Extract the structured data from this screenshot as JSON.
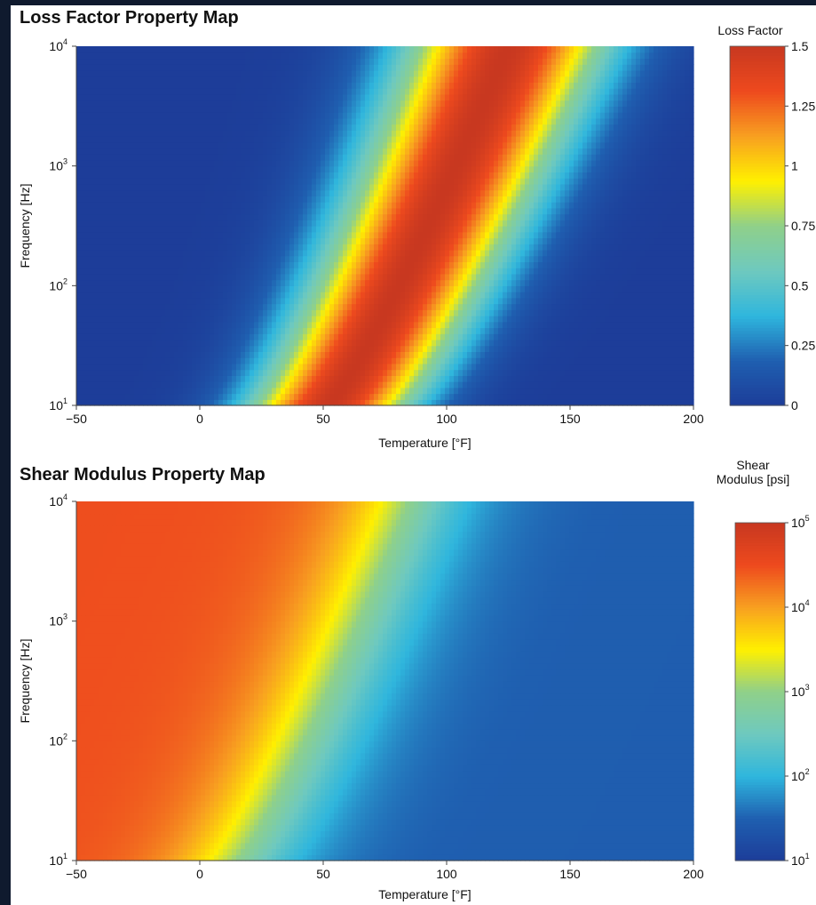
{
  "colors": {
    "page_background": "#0f1a2e",
    "colormap": [
      "#1d3d99",
      "#1f5fb0",
      "#2fb6dd",
      "#6ec9bf",
      "#8fd08a",
      "#fff000",
      "#f8a020",
      "#ee4a1e",
      "#c83820"
    ]
  },
  "chart_data": [
    {
      "type": "heatmap",
      "title": "Loss Factor Property Map",
      "xlabel": "Temperature [°F]",
      "ylabel": "Frequency [Hz]",
      "x_ticks": [
        "−50",
        "0",
        "50",
        "100",
        "150",
        "200"
      ],
      "xlim": [
        -50,
        200
      ],
      "y_scale": "log",
      "y_ticks": [
        {
          "base": "10",
          "exp": "1"
        },
        {
          "base": "10",
          "exp": "2"
        },
        {
          "base": "10",
          "exp": "3"
        },
        {
          "base": "10",
          "exp": "4"
        }
      ],
      "ylim": [
        10,
        10000
      ],
      "colorbar": {
        "title_lines": [
          "Loss Factor"
        ],
        "range": [
          0,
          1.5
        ],
        "scale": "linear",
        "ticks": [
          {
            "text": "1.5"
          },
          {
            "text": "1.25"
          },
          {
            "text": "1"
          },
          {
            "text": "0.75"
          },
          {
            "text": "0.5"
          },
          {
            "text": "0.25"
          },
          {
            "text": "0"
          }
        ]
      },
      "peak_temperature_at_10Hz": 52,
      "peak_temperature_at_10000Hz": 125,
      "peak_value": 1.5,
      "grid": false
    },
    {
      "type": "heatmap",
      "title": "Shear Modulus Property Map",
      "xlabel": "Temperature [°F]",
      "ylabel": "Frequency [Hz]",
      "x_ticks": [
        "−50",
        "0",
        "50",
        "100",
        "150",
        "200"
      ],
      "xlim": [
        -50,
        200
      ],
      "y_scale": "log",
      "y_ticks": [
        {
          "base": "10",
          "exp": "1"
        },
        {
          "base": "10",
          "exp": "2"
        },
        {
          "base": "10",
          "exp": "3"
        },
        {
          "base": "10",
          "exp": "4"
        }
      ],
      "ylim": [
        10,
        10000
      ],
      "colorbar": {
        "title_lines": [
          "Shear",
          "Modulus [psi]"
        ],
        "range": [
          10,
          100000
        ],
        "scale": "log",
        "ticks": [
          {
            "base": "10",
            "exp": "5"
          },
          {
            "base": "10",
            "exp": "4"
          },
          {
            "base": "10",
            "exp": "3"
          },
          {
            "base": "10",
            "exp": "2"
          },
          {
            "base": "10",
            "exp": "1"
          }
        ]
      },
      "transition_temperature_at_10Hz": 15,
      "transition_temperature_at_10000Hz": 85,
      "glassy_modulus_psi": 30000,
      "rubbery_modulus_psi": 30,
      "grid": false
    }
  ]
}
